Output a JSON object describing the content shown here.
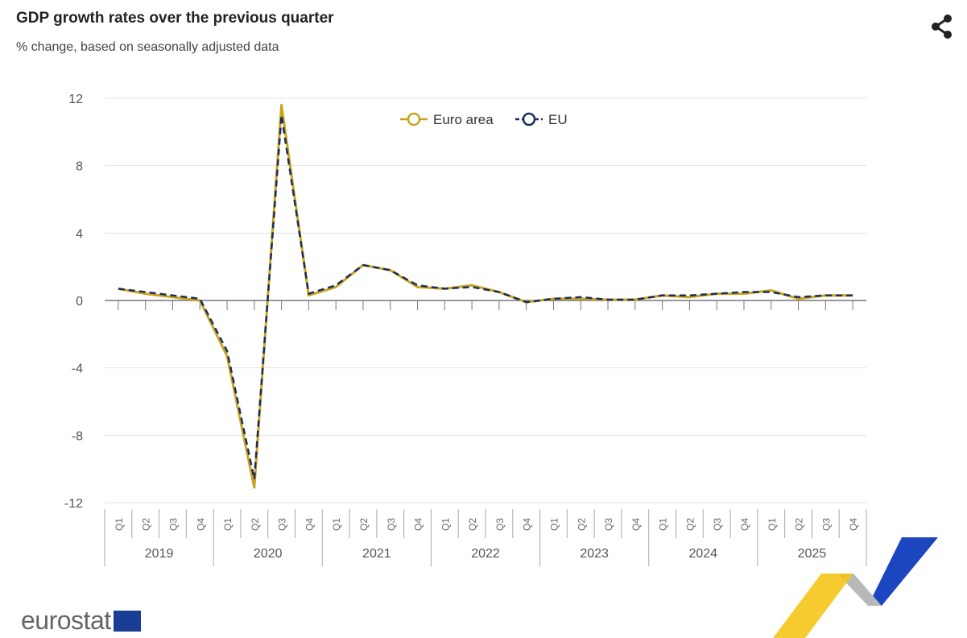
{
  "header": {
    "title": "GDP growth rates over the previous quarter",
    "subtitle": "% change, based on seasonally adjusted data",
    "share_icon": "share-icon"
  },
  "logo": {
    "text": "eurostat"
  },
  "colors": {
    "euro_area": "#c9a41e",
    "eu": "#1c2d5c",
    "grid": "#e3e3e3",
    "axis": "#777"
  },
  "chart_data": {
    "type": "line",
    "title": "GDP growth rates over the previous quarter",
    "subtitle": "% change, based on seasonally adjusted data",
    "ylim": [
      -12,
      12
    ],
    "yticks": [
      -12,
      -8,
      -4,
      0,
      4,
      8,
      12
    ],
    "grid": true,
    "legend_placement": "top-center",
    "years": [
      "2019",
      "2020",
      "2021",
      "2022",
      "2023",
      "2024",
      "2025"
    ],
    "quarters": [
      "Q1",
      "Q2",
      "Q3",
      "Q4"
    ],
    "series": [
      {
        "name": "Euro area",
        "style": "solid",
        "values": [
          0.7,
          0.4,
          0.2,
          0.0,
          -3.3,
          -11.1,
          11.6,
          0.3,
          0.8,
          2.1,
          1.8,
          0.8,
          0.7,
          0.9,
          0.5,
          -0.1,
          0.1,
          0.1,
          0.05,
          0.05,
          0.3,
          0.2,
          0.4,
          0.4,
          0.6,
          0.1,
          0.3,
          0.3
        ]
      },
      {
        "name": "EU",
        "style": "dashed",
        "values": [
          0.7,
          0.5,
          0.3,
          0.1,
          -3.0,
          -10.6,
          11.0,
          0.4,
          0.9,
          2.1,
          1.8,
          0.9,
          0.7,
          0.8,
          0.5,
          -0.1,
          0.1,
          0.2,
          0.05,
          0.05,
          0.3,
          0.3,
          0.4,
          0.5,
          0.5,
          0.2,
          0.3,
          0.3
        ]
      }
    ]
  }
}
